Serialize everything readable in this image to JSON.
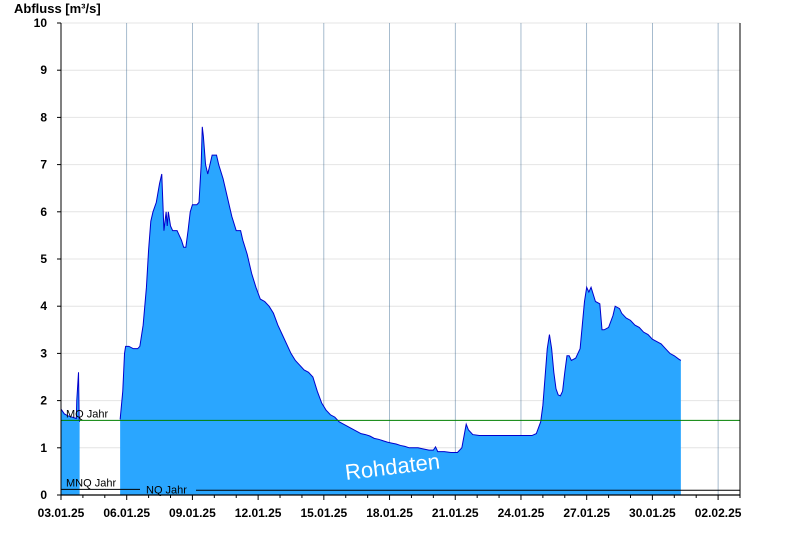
{
  "chart_data": {
    "type": "area",
    "ylabel": "Abfluss [m³/s]",
    "ylim": [
      0,
      10
    ],
    "yticks": [
      "0",
      "1",
      "2",
      "3",
      "4",
      "5",
      "6",
      "7",
      "8",
      "9",
      "10"
    ],
    "xticks": [
      "03.01.25",
      "06.01.25",
      "09.01.25",
      "12.01.25",
      "15.01.25",
      "18.01.25",
      "21.01.25",
      "24.01.25",
      "27.01.25",
      "30.01.25",
      "02.02.25"
    ],
    "xlim_days": [
      0,
      31
    ],
    "grid": true,
    "watermark": "Rohdaten",
    "fill_color": "#2aa6ff",
    "line_color": "#0000cc",
    "reference_lines": [
      {
        "name": "MQ Jahr",
        "value": 1.58,
        "color": "#008000"
      },
      {
        "name": "MNQ Jahr",
        "value": 0.12,
        "color": "#000000"
      },
      {
        "name": "NQ Jahr",
        "value": 0.1,
        "color": "#000000"
      }
    ],
    "series": [
      {
        "segments": [
          [
            [
              0.0,
              1.82
            ],
            [
              0.15,
              1.72
            ],
            [
              0.3,
              1.68
            ],
            [
              0.5,
              1.65
            ],
            [
              0.7,
              1.62
            ],
            [
              0.72,
              2.0
            ],
            [
              0.8,
              2.6
            ],
            [
              0.83,
              1.6
            ],
            [
              0.85,
              1.55
            ]
          ],
          [
            [
              2.7,
              1.6
            ],
            [
              2.82,
              2.2
            ],
            [
              2.9,
              3.0
            ],
            [
              2.95,
              3.15
            ],
            [
              3.1,
              3.15
            ],
            [
              3.3,
              3.1
            ],
            [
              3.5,
              3.1
            ],
            [
              3.6,
              3.15
            ],
            [
              3.75,
              3.6
            ],
            [
              3.9,
              4.4
            ],
            [
              4.0,
              5.2
            ],
            [
              4.1,
              5.8
            ],
            [
              4.2,
              6.0
            ],
            [
              4.35,
              6.2
            ],
            [
              4.5,
              6.6
            ],
            [
              4.6,
              6.8
            ],
            [
              4.7,
              5.6
            ],
            [
              4.8,
              6.0
            ],
            [
              4.85,
              5.7
            ],
            [
              4.9,
              6.0
            ],
            [
              5.0,
              5.7
            ],
            [
              5.1,
              5.6
            ],
            [
              5.3,
              5.6
            ],
            [
              5.4,
              5.5
            ],
            [
              5.5,
              5.4
            ],
            [
              5.6,
              5.25
            ],
            [
              5.7,
              5.25
            ],
            [
              5.8,
              5.6
            ],
            [
              5.9,
              6.0
            ],
            [
              6.0,
              6.15
            ],
            [
              6.2,
              6.15
            ],
            [
              6.3,
              6.2
            ],
            [
              6.4,
              7.0
            ],
            [
              6.45,
              7.8
            ],
            [
              6.5,
              7.6
            ],
            [
              6.6,
              7.0
            ],
            [
              6.7,
              6.8
            ],
            [
              6.8,
              7.0
            ],
            [
              6.9,
              7.2
            ],
            [
              7.1,
              7.2
            ],
            [
              7.2,
              7.0
            ],
            [
              7.4,
              6.7
            ],
            [
              7.6,
              6.3
            ],
            [
              7.7,
              6.1
            ],
            [
              7.8,
              5.9
            ],
            [
              8.0,
              5.6
            ],
            [
              8.2,
              5.6
            ],
            [
              8.3,
              5.4
            ],
            [
              8.5,
              5.1
            ],
            [
              8.7,
              4.7
            ],
            [
              8.9,
              4.4
            ],
            [
              9.1,
              4.15
            ],
            [
              9.3,
              4.1
            ],
            [
              9.5,
              4.0
            ],
            [
              9.7,
              3.85
            ],
            [
              9.9,
              3.6
            ],
            [
              10.1,
              3.4
            ],
            [
              10.3,
              3.2
            ],
            [
              10.5,
              3.0
            ],
            [
              10.7,
              2.85
            ],
            [
              10.9,
              2.75
            ],
            [
              11.1,
              2.65
            ],
            [
              11.3,
              2.6
            ],
            [
              11.5,
              2.5
            ],
            [
              11.7,
              2.2
            ],
            [
              11.9,
              1.95
            ],
            [
              12.1,
              1.8
            ],
            [
              12.3,
              1.7
            ],
            [
              12.5,
              1.65
            ],
            [
              12.7,
              1.55
            ],
            [
              12.9,
              1.5
            ],
            [
              13.1,
              1.45
            ],
            [
              13.3,
              1.4
            ],
            [
              13.5,
              1.35
            ],
            [
              13.7,
              1.3
            ],
            [
              13.9,
              1.28
            ],
            [
              14.1,
              1.25
            ],
            [
              14.3,
              1.2
            ],
            [
              14.5,
              1.18
            ],
            [
              14.7,
              1.15
            ],
            [
              14.9,
              1.12
            ],
            [
              15.1,
              1.1
            ],
            [
              15.3,
              1.08
            ],
            [
              15.5,
              1.05
            ],
            [
              15.7,
              1.03
            ],
            [
              15.9,
              1.0
            ],
            [
              16.1,
              1.0
            ],
            [
              16.3,
              1.0
            ],
            [
              16.5,
              0.98
            ],
            [
              16.8,
              0.95
            ],
            [
              17.0,
              0.95
            ],
            [
              17.1,
              1.02
            ],
            [
              17.2,
              0.92
            ],
            [
              17.5,
              0.92
            ],
            [
              17.8,
              0.9
            ],
            [
              18.1,
              0.9
            ],
            [
              18.3,
              1.0
            ],
            [
              18.4,
              1.25
            ],
            [
              18.5,
              1.5
            ],
            [
              18.6,
              1.38
            ],
            [
              18.8,
              1.28
            ],
            [
              19.1,
              1.26
            ],
            [
              19.5,
              1.26
            ],
            [
              20.0,
              1.26
            ],
            [
              20.5,
              1.26
            ],
            [
              21.0,
              1.26
            ],
            [
              21.5,
              1.26
            ],
            [
              21.7,
              1.3
            ],
            [
              21.9,
              1.55
            ],
            [
              22.0,
              1.9
            ],
            [
              22.1,
              2.5
            ],
            [
              22.2,
              3.1
            ],
            [
              22.3,
              3.4
            ],
            [
              22.4,
              3.1
            ],
            [
              22.5,
              2.6
            ],
            [
              22.6,
              2.25
            ],
            [
              22.7,
              2.12
            ],
            [
              22.8,
              2.1
            ],
            [
              22.9,
              2.2
            ],
            [
              23.0,
              2.6
            ],
            [
              23.1,
              2.95
            ],
            [
              23.2,
              2.95
            ],
            [
              23.3,
              2.85
            ],
            [
              23.5,
              2.9
            ],
            [
              23.7,
              3.1
            ],
            [
              23.8,
              3.6
            ],
            [
              23.9,
              4.1
            ],
            [
              24.0,
              4.4
            ],
            [
              24.1,
              4.3
            ],
            [
              24.2,
              4.4
            ],
            [
              24.3,
              4.25
            ],
            [
              24.4,
              4.1
            ],
            [
              24.6,
              4.05
            ],
            [
              24.7,
              3.5
            ],
            [
              24.8,
              3.5
            ],
            [
              25.0,
              3.55
            ],
            [
              25.2,
              3.8
            ],
            [
              25.3,
              4.0
            ],
            [
              25.5,
              3.95
            ],
            [
              25.6,
              3.85
            ],
            [
              25.8,
              3.75
            ],
            [
              26.0,
              3.7
            ],
            [
              26.2,
              3.6
            ],
            [
              26.4,
              3.55
            ],
            [
              26.6,
              3.45
            ],
            [
              26.8,
              3.4
            ],
            [
              27.0,
              3.3
            ],
            [
              27.2,
              3.25
            ],
            [
              27.4,
              3.2
            ],
            [
              27.6,
              3.1
            ],
            [
              27.8,
              3.0
            ],
            [
              28.0,
              2.95
            ],
            [
              28.2,
              2.88
            ],
            [
              28.3,
              2.85
            ]
          ]
        ]
      }
    ]
  }
}
